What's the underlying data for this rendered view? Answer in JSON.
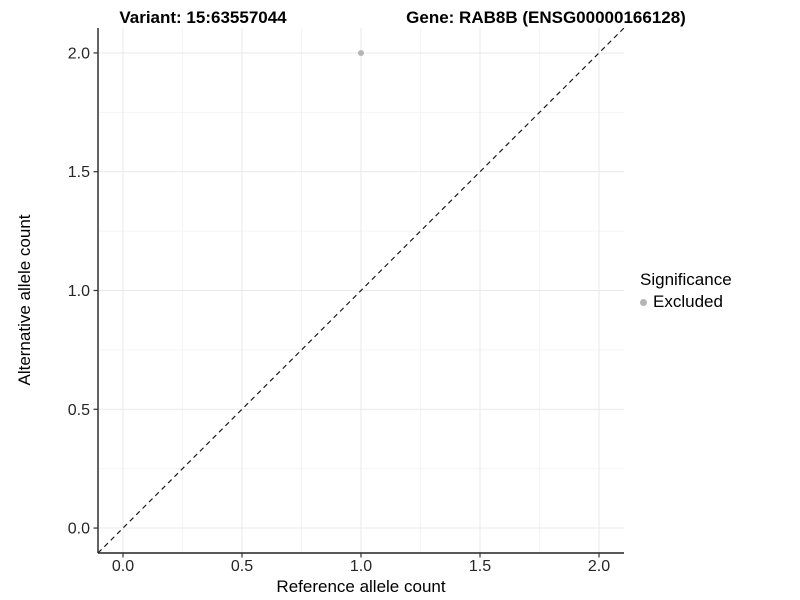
{
  "header": {
    "variant_title": "Variant: 15:63557044",
    "gene_title": "Gene: RAB8B (ENSG00000166128)"
  },
  "chart_data": {
    "type": "scatter",
    "title": "Variant: 15:63557044    Gene: RAB8B (ENSG00000166128)",
    "xlabel": "Reference allele count",
    "ylabel": "Alternative allele count",
    "xlim": [
      -0.105,
      2.105
    ],
    "ylim": [
      -0.105,
      2.105
    ],
    "x_tick_values": [
      0.0,
      0.5,
      1.0,
      1.5,
      2.0
    ],
    "x_tick_labels": [
      "0.0",
      "0.5",
      "1.0",
      "1.5",
      "2.0"
    ],
    "y_tick_values": [
      0.0,
      0.5,
      1.0,
      1.5,
      2.0
    ],
    "y_tick_labels": [
      "0.0",
      "0.5",
      "1.0",
      "1.5",
      "2.0"
    ],
    "x_minor_tick_values": [
      0.25,
      0.75,
      1.25,
      1.75
    ],
    "y_minor_tick_values": [
      0.25,
      0.75,
      1.25,
      1.75
    ],
    "grid": true,
    "reference_line": {
      "type": "identity",
      "slope": 1,
      "intercept": 0,
      "style": "dashed",
      "color": "#1a1a1a"
    },
    "series": [
      {
        "name": "Excluded",
        "color": "#b5b5b5",
        "points": [
          {
            "x": 1.0,
            "y": 2.0
          }
        ]
      }
    ],
    "legend": {
      "title": "Significance",
      "position": "right",
      "entries": [
        {
          "label": "Excluded",
          "color": "#b5b5b5"
        }
      ]
    },
    "colors": {
      "grid_major": "#e9e9e9",
      "grid_minor": "#f4f4f4",
      "axis_line": "#222222",
      "tick_mark": "#333333",
      "tick_text": "#262626",
      "background": "#ffffff"
    }
  }
}
